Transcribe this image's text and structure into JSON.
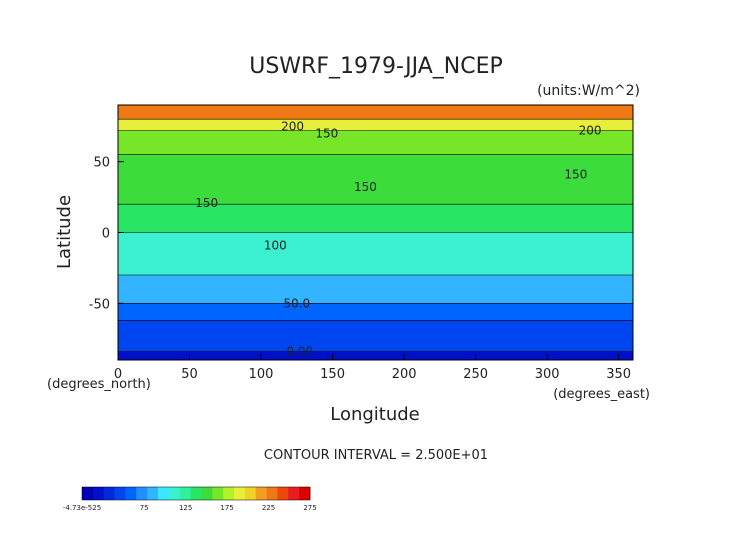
{
  "chart_data": {
    "type": "heatmap",
    "title": "USWRF_1979-JJA_NCEP",
    "units": "(units:W/m^2)",
    "xlabel": "Longitude",
    "ylabel": "Latitude",
    "x_unit_label": "(degrees_east)",
    "y_unit_label": "(degrees_north)",
    "xlim": [
      0,
      360
    ],
    "ylim": [
      -90,
      90
    ],
    "x_ticks": [
      0,
      50,
      100,
      150,
      200,
      250,
      300,
      350
    ],
    "y_ticks": [
      -50,
      0,
      50
    ],
    "contour_interval_text": "CONTOUR INTERVAL = 2.500E+01",
    "contour_labels": [
      {
        "text": "200",
        "lon": 122,
        "lat": 75
      },
      {
        "text": "150",
        "lon": 146,
        "lat": 70
      },
      {
        "text": "200",
        "lon": 330,
        "lat": 72
      },
      {
        "text": "150",
        "lon": 320,
        "lat": 41
      },
      {
        "text": "150",
        "lon": 173,
        "lat": 32
      },
      {
        "text": "150",
        "lon": 62,
        "lat": 21
      },
      {
        "text": "100",
        "lon": 110,
        "lat": -9
      },
      {
        "text": "50.0",
        "lon": 125,
        "lat": -50
      },
      {
        "text": "0.00",
        "lon": 127,
        "lat": -84
      }
    ],
    "latitude_bands": [
      {
        "lat_from": 80,
        "lat_to": 90,
        "value": 225
      },
      {
        "lat_from": 72,
        "lat_to": 80,
        "value": 185
      },
      {
        "lat_from": 55,
        "lat_to": 72,
        "value": 150
      },
      {
        "lat_from": 20,
        "lat_to": 55,
        "value": 140
      },
      {
        "lat_from": 0,
        "lat_to": 20,
        "value": 125
      },
      {
        "lat_from": -30,
        "lat_to": 0,
        "value": 90
      },
      {
        "lat_from": -50,
        "lat_to": -30,
        "value": 70
      },
      {
        "lat_from": -62,
        "lat_to": -50,
        "value": 40
      },
      {
        "lat_from": -84,
        "lat_to": -62,
        "value": 15
      },
      {
        "lat_from": -90,
        "lat_to": -84,
        "value": -5
      }
    ],
    "colorbar": {
      "tick_labels": [
        "-4.73e-525",
        "75",
        "125",
        "175",
        "225",
        "275"
      ],
      "colors": [
        "#0000b4",
        "#0010c8",
        "#0028dc",
        "#0046f0",
        "#0064ff",
        "#1e90ff",
        "#32b4ff",
        "#3ce6ff",
        "#3cf0d2",
        "#32f0a0",
        "#28e664",
        "#3cdc3c",
        "#78e628",
        "#b4f028",
        "#e6f03c",
        "#f0d228",
        "#f0a01e",
        "#f07814",
        "#f0460a",
        "#e61e1e",
        "#dc0000"
      ]
    }
  }
}
